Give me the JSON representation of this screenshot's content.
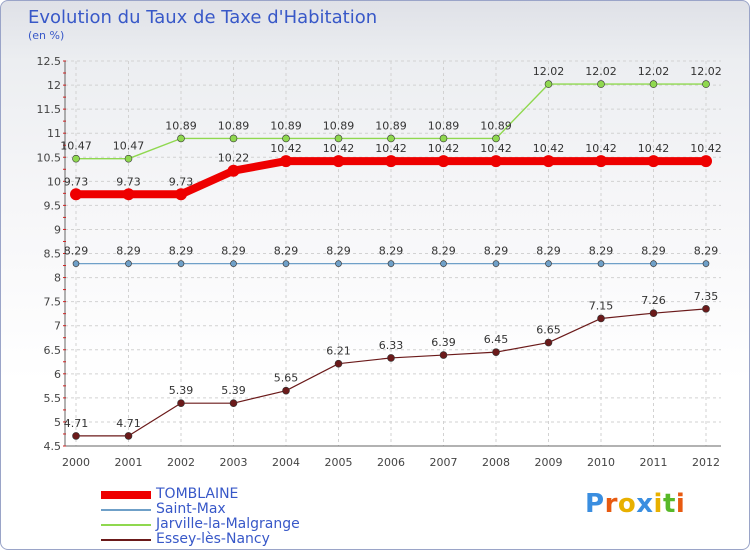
{
  "chart_data": {
    "type": "line",
    "title": "Evolution du Taux de Taxe d'Habitation",
    "subtitle": "(en %)",
    "x": [
      "2000",
      "2001",
      "2002",
      "2003",
      "2004",
      "2005",
      "2006",
      "2007",
      "2008",
      "2009",
      "2010",
      "2011",
      "2012"
    ],
    "ylim": [
      4.5,
      12.5
    ],
    "yticks": [
      4.5,
      5,
      5.5,
      6,
      6.5,
      7,
      7.5,
      8,
      8.5,
      9,
      9.5,
      10,
      10.5,
      11,
      11.5,
      12,
      12.5
    ],
    "grid": true,
    "legend_position": "bottom-left",
    "series": [
      {
        "name": "TOMBLAINE",
        "color": "#ee0000",
        "values": [
          9.73,
          9.73,
          9.73,
          10.22,
          10.42,
          10.42,
          10.42,
          10.42,
          10.42,
          10.42,
          10.42,
          10.42,
          10.42
        ]
      },
      {
        "name": "Saint-Max",
        "color": "#6fa0c8",
        "values": [
          8.29,
          8.29,
          8.29,
          8.29,
          8.29,
          8.29,
          8.29,
          8.29,
          8.29,
          8.29,
          8.29,
          8.29,
          8.29
        ]
      },
      {
        "name": "Jarville-la-Malgrange",
        "color": "#8fd84f",
        "values": [
          10.47,
          10.47,
          10.89,
          10.89,
          10.89,
          10.89,
          10.89,
          10.89,
          10.89,
          12.02,
          12.02,
          12.02,
          12.02
        ]
      },
      {
        "name": "Essey-lès-Nancy",
        "color": "#6b1a1a",
        "values": [
          4.71,
          4.71,
          5.39,
          5.39,
          5.65,
          6.21,
          6.33,
          6.39,
          6.45,
          6.65,
          7.15,
          7.26,
          7.35
        ]
      }
    ]
  },
  "logo": {
    "letters": [
      "P",
      "r",
      "o",
      "x",
      "i",
      "t",
      "i"
    ],
    "colors": [
      "#3a8ee0",
      "#e85a10",
      "#e8b000",
      "#3a8ee0",
      "#e8b000",
      "#58b828",
      "#e85a10"
    ]
  }
}
